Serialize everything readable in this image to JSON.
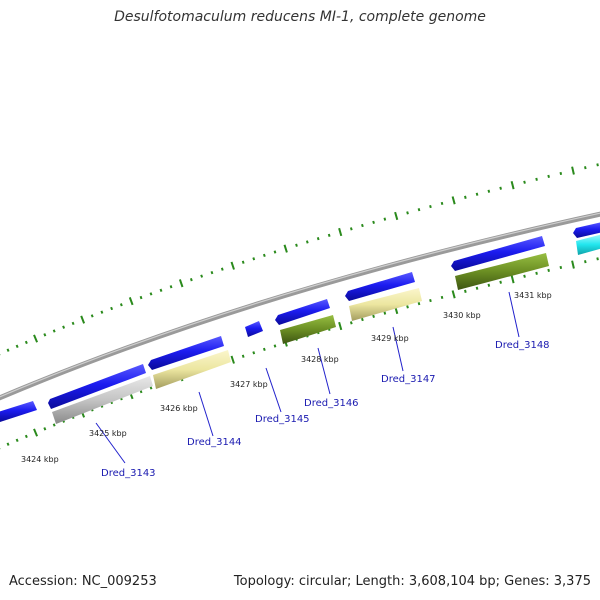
{
  "title": "Desulfotomaculum reducens MI-1, complete genome",
  "footer": {
    "accession": "Accession: NC_009253",
    "summary": "Topology: circular; Length: 3,608,104 bp; Genes: 3,375"
  },
  "colors": {
    "backbone": "#8a8a8a",
    "tick": "#2a8a1c",
    "gene_blue": "#1818e6",
    "gene_yellow": "#ece6a0",
    "gene_olive": "#6b8e23",
    "gene_gray": "#c4c4c4",
    "gene_cyan": "#22e6ee",
    "label_blue": "#1a1ab0",
    "leader": "#2222cc"
  },
  "kbp_labels": [
    "3424 kbp",
    "3425 kbp",
    "3426 kbp",
    "3427 kbp",
    "3428 kbp",
    "3429 kbp",
    "3430 kbp",
    "3431 kbp"
  ],
  "gene_labels": [
    "Dred_3143",
    "Dred_3144",
    "Dred_3145",
    "Dred_3146",
    "Dred_3147",
    "Dred_3148"
  ]
}
